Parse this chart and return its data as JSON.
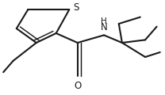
{
  "bg_color": "#ffffff",
  "line_color": "#1a1a1a",
  "line_width": 1.5,
  "font_size": 8.5,
  "xlim": [
    0.0,
    1.0
  ],
  "ylim": [
    0.0,
    1.0
  ]
}
